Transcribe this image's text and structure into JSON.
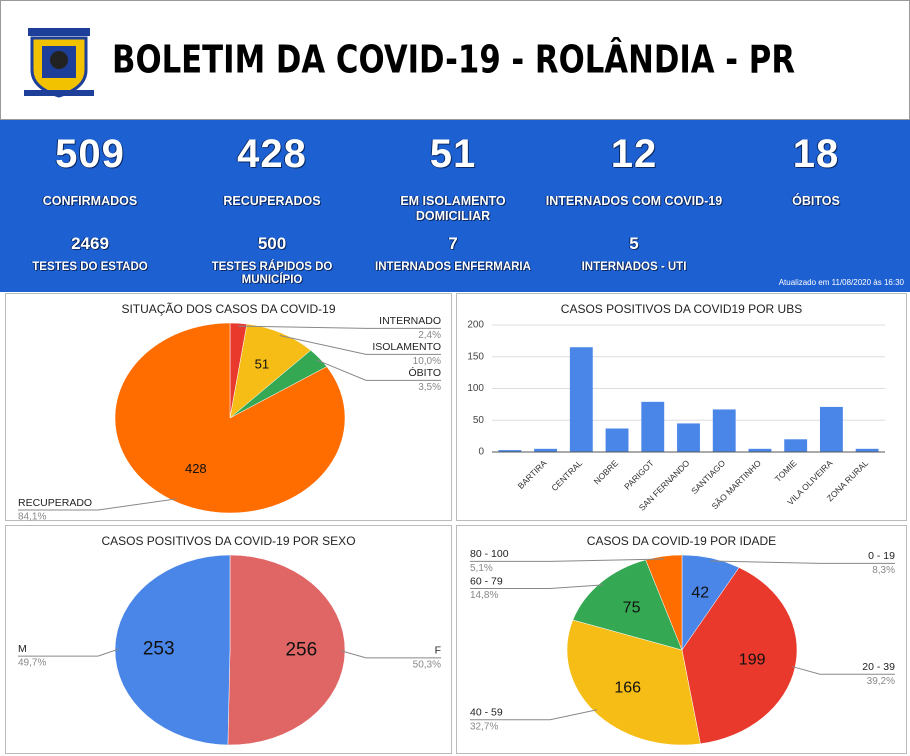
{
  "header": {
    "title": "BOLETIM DA COVID-19 - ROLÂNDIA - PR"
  },
  "stats": {
    "main": [
      {
        "value": 509,
        "label": "CONFIRMADOS"
      },
      {
        "value": 428,
        "label": "RECUPERADOS"
      },
      {
        "value": 51,
        "label": "EM ISOLAMENTO DOMICILIAR"
      },
      {
        "value": 12,
        "label": "INTERNADOS COM COVID-19"
      },
      {
        "value": 18,
        "label": "ÓBITOS"
      }
    ],
    "secondary": [
      {
        "value": 2469,
        "label": "TESTES DO ESTADO"
      },
      {
        "value": 500,
        "label": "TESTES RÁPIDOS DO MUNICÍPIO"
      },
      {
        "value": 7,
        "label": "INTERNADOS ENFERMARIA"
      },
      {
        "value": 5,
        "label": "INTERNADOS - UTI"
      }
    ],
    "updated": "Atualizado em 11/08/2020 às 16:30"
  },
  "chart_data": [
    {
      "type": "pie",
      "title": "SITUAÇÃO DOS CASOS DA COVID-19",
      "categories": [
        "INTERNADO",
        "ISOLAMENTO",
        "ÓBITO",
        "RECUPERADO"
      ],
      "values": [
        12,
        51,
        18,
        428
      ],
      "percent_labels": [
        "2,4%",
        "10,0%",
        "3,5%",
        "84,1%"
      ],
      "colors": [
        "#e8392c",
        "#f6bd16",
        "#34a853",
        "#ff6d00"
      ]
    },
    {
      "type": "bar",
      "title": "CASOS POSITIVOS DA COVID19 POR UBS",
      "categories": [
        null,
        "BARTIRA",
        "CENTRAL",
        "NOBRE",
        "PARIGOT",
        "SAN FERNANDO",
        "SANTIAGO",
        "SÃO MARTINHO",
        "TOMIE",
        "VILA OLIVEIRA",
        "ZONA RURAL"
      ],
      "values": [
        3,
        5,
        165,
        37,
        79,
        45,
        67,
        5,
        20,
        71,
        5
      ],
      "color": "#4a86e8",
      "ylim": [
        0,
        200
      ],
      "yticks": [
        0,
        50,
        100,
        150,
        200
      ],
      "grid": true
    },
    {
      "type": "pie",
      "title": "CASOS POSITIVOS DA COVID-19 POR SEXO",
      "categories": [
        "F",
        "M"
      ],
      "values": [
        256,
        253
      ],
      "percent_labels": [
        "50,3%",
        "49,7%"
      ],
      "colors": [
        "#e06666",
        "#4a86e8"
      ]
    },
    {
      "type": "pie",
      "title": "CASOS DA COVID-19 POR IDADE",
      "categories": [
        "0 - 19",
        "20 - 39",
        "40 - 59",
        "60 - 79",
        "80 - 100"
      ],
      "values": [
        42,
        199,
        166,
        75,
        26
      ],
      "percent_labels": [
        "8,3%",
        "39,2%",
        "32,7%",
        "14,8%",
        "5,1%"
      ],
      "colors": [
        "#4a86e8",
        "#e8392c",
        "#f6bd16",
        "#34a853",
        "#ff6d00"
      ]
    }
  ]
}
